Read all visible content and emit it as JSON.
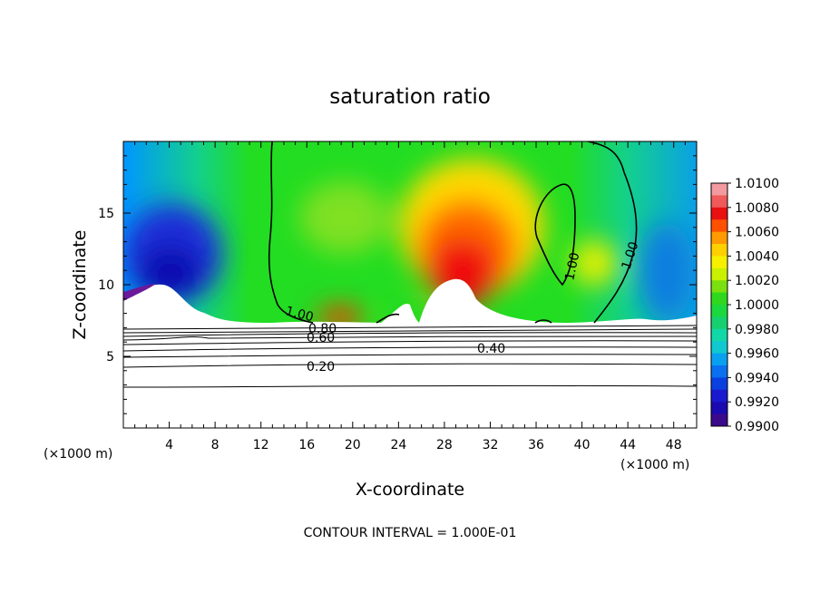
{
  "chart_data": {
    "type": "heatmap",
    "title": "saturation ratio",
    "xlabel": "X-coordinate",
    "ylabel": "Z-coordinate",
    "x_unit_left": "(×1000 m)",
    "x_unit_right": "(×1000 m)",
    "footer": "CONTOUR INTERVAL = 1.000E-01",
    "xlim": [
      0,
      50
    ],
    "ylim": [
      0,
      20
    ],
    "x_ticks": [
      4,
      8,
      12,
      16,
      20,
      24,
      28,
      32,
      36,
      40,
      44,
      48
    ],
    "y_ticks": [
      5,
      10,
      15
    ],
    "colorbar": {
      "ticks": [
        "1.0100",
        "1.0080",
        "1.0060",
        "1.0040",
        "1.0020",
        "1.0000",
        "0.9980",
        "0.9960",
        "0.9940",
        "0.9920",
        "0.9900"
      ],
      "min": 0.99,
      "max": 1.01
    },
    "contour_labels": [
      "1.00",
      "1.00",
      "1.00",
      "0.80",
      "0.60",
      "0.40",
      "0.20"
    ]
  }
}
